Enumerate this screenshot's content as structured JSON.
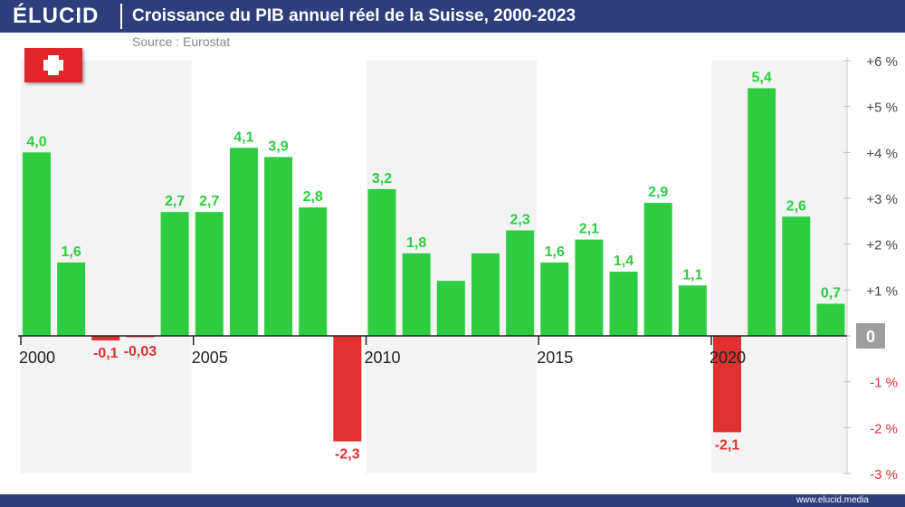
{
  "header": {
    "logo": "ÉLUCID",
    "title": "Croissance du PIB annuel réel de la Suisse, 2000-2023",
    "source": "Source : Eurostat"
  },
  "footer": {
    "url": "www.elucid.media"
  },
  "colors": {
    "positive": "#2ecc40",
    "negative": "#e03131",
    "header": "#2c3e7b",
    "band": "#f3f3f3",
    "zero_badge": "#9e9e9e"
  },
  "chart_data": {
    "type": "bar",
    "categories": [
      "2000",
      "2001",
      "2002",
      "2003",
      "2004",
      "2005",
      "2006",
      "2007",
      "2008",
      "2009",
      "2010",
      "2011",
      "2012",
      "2013",
      "2014",
      "2015",
      "2016",
      "2017",
      "2018",
      "2019",
      "2020",
      "2021",
      "2022",
      "2023"
    ],
    "values": [
      4.0,
      1.6,
      -0.1,
      -0.03,
      2.7,
      2.7,
      4.1,
      3.9,
      2.8,
      -2.3,
      3.2,
      1.8,
      1.2,
      1.8,
      2.3,
      1.6,
      2.1,
      1.4,
      2.9,
      1.1,
      -2.1,
      5.4,
      2.6,
      0.7
    ],
    "data_labels": [
      "4,0",
      "1,6",
      "-0,1",
      "-0,03",
      "2,7",
      "2,7",
      "4,1",
      "3,9",
      "2,8",
      "-2,3",
      "3,2",
      "1,8",
      "",
      "",
      "2,3",
      "1,6",
      "2,1",
      "1,4",
      "2,9",
      "1,1",
      "-2,1",
      "5,4",
      "2,6",
      "0,7"
    ],
    "x_tick_labels": [
      {
        "year": "2000",
        "label": "2000"
      },
      {
        "year": "2005",
        "label": "2005"
      },
      {
        "year": "2010",
        "label": "2010"
      },
      {
        "year": "2015",
        "label": "2015"
      },
      {
        "year": "2020",
        "label": "2020"
      }
    ],
    "y_ticks": [
      {
        "value": 6,
        "label": "+6 %"
      },
      {
        "value": 5,
        "label": "+5 %"
      },
      {
        "value": 4,
        "label": "+4 %"
      },
      {
        "value": 3,
        "label": "+3 %"
      },
      {
        "value": 2,
        "label": "+2 %"
      },
      {
        "value": 1,
        "label": "+1 %"
      },
      {
        "value": 0,
        "label": "0"
      },
      {
        "value": -1,
        "label": "-1 %"
      },
      {
        "value": -2,
        "label": "-2 %"
      },
      {
        "value": -3,
        "label": "-3 %"
      }
    ],
    "ylim": [
      -3,
      6
    ],
    "shaded_periods": [
      [
        "2000",
        "2004"
      ],
      [
        "2010",
        "2014"
      ],
      [
        "2020",
        "2023"
      ]
    ],
    "grid": false,
    "legend": "none"
  }
}
